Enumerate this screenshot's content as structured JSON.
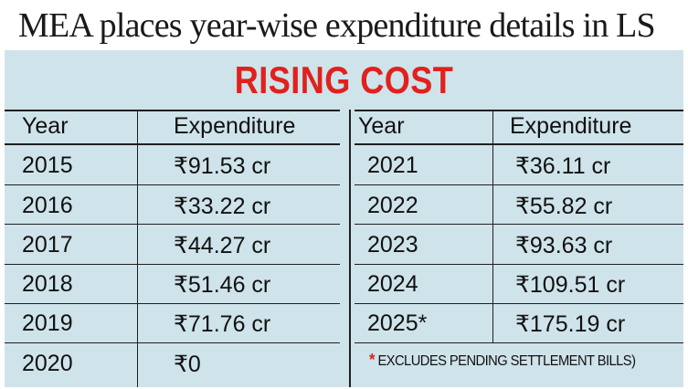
{
  "headline": "MEA places year-wise expenditure details in LS",
  "title": "RISING COST",
  "left_table": {
    "headers": [
      "Year",
      "Expenditure"
    ],
    "rows": [
      [
        "2015",
        "₹91.53 cr"
      ],
      [
        "2016",
        "₹33.22 cr"
      ],
      [
        "2017",
        "₹44.27 cr"
      ],
      [
        "2018",
        "₹51.46 cr"
      ],
      [
        "2019",
        "₹71.76 cr"
      ],
      [
        "2020",
        "₹0"
      ]
    ]
  },
  "right_table": {
    "headers": [
      "Year",
      "Expenditure"
    ],
    "rows": [
      [
        "2021",
        "₹36.11 cr"
      ],
      [
        "2022",
        "₹55.82 cr"
      ],
      [
        "2023",
        "₹93.63 cr"
      ],
      [
        "2024",
        "₹109.51 cr"
      ],
      [
        "2025*",
        "₹175.19 cr"
      ]
    ]
  },
  "footnote": {
    "marker": "*",
    "text": "EXCLUDES PENDING SETTLEMENT BILLS)"
  },
  "colors": {
    "title": "#e0211d",
    "panel": "#cfe3ea",
    "text": "#111111"
  }
}
